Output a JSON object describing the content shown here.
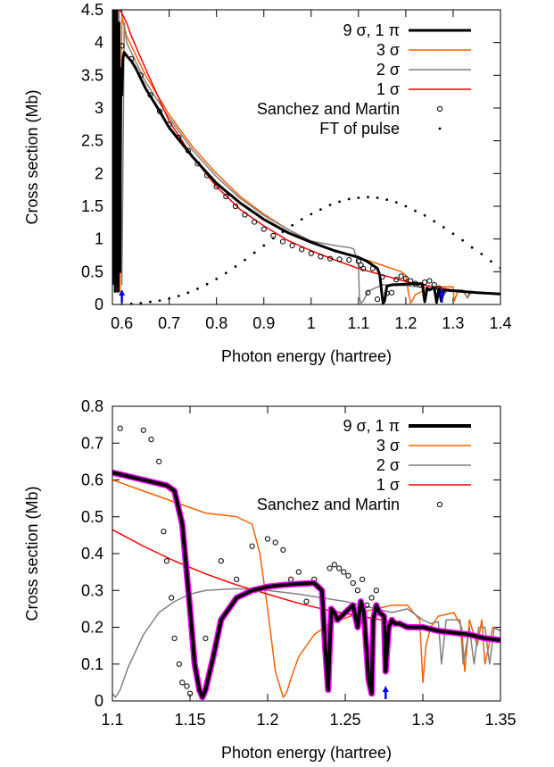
{
  "chart_data": [
    {
      "type": "line",
      "title": "",
      "xlabel": "Photon energy (hartree)",
      "ylabel": "Cross section (Mb)",
      "xlim": [
        0.58,
        1.4
      ],
      "ylim": [
        0,
        4.5
      ],
      "xticks": [
        0.6,
        0.7,
        0.8,
        0.9,
        1,
        1.1,
        1.2,
        1.3,
        1.4
      ],
      "xtick_labels": [
        "0.6",
        "0.7",
        "0.8",
        "0.9",
        "1",
        "1.1",
        "1.2",
        "1.3",
        "1.4"
      ],
      "yticks": [
        0,
        0.5,
        1,
        1.5,
        2,
        2.5,
        3,
        3.5,
        4,
        4.5
      ],
      "ytick_labels": [
        "0",
        "0.5",
        "1",
        "1.5",
        "2",
        "2.5",
        "3",
        "3.5",
        "4",
        "4.5"
      ],
      "legend": "top-right",
      "grid": false,
      "markers": [
        0.6,
        1.276
      ],
      "marker_color": "#0000ff",
      "series": [
        {
          "name": "9 σ, 1 π",
          "style": "line",
          "color": "#000000",
          "width": 3,
          "x": [
            0.58,
            0.583,
            0.586,
            0.589,
            0.592,
            0.594,
            0.596,
            0.598,
            0.6,
            0.602,
            0.605,
            0.61,
            0.62,
            0.63,
            0.65,
            0.68,
            0.7,
            0.75,
            0.8,
            0.85,
            0.9,
            0.95,
            1.0,
            1.05,
            1.08,
            1.1,
            1.12,
            1.13,
            1.14,
            1.145,
            1.15,
            1.152,
            1.155,
            1.16,
            1.17,
            1.2,
            1.22,
            1.235,
            1.24,
            1.245,
            1.25,
            1.26,
            1.265,
            1.27,
            1.275,
            1.28,
            1.3,
            1.35,
            1.4
          ],
          "y": [
            0.3,
            4.5,
            0.2,
            4.5,
            0.2,
            4.3,
            0.5,
            3.6,
            3.2,
            3.75,
            3.85,
            3.8,
            3.72,
            3.6,
            3.3,
            2.95,
            2.7,
            2.25,
            1.85,
            1.55,
            1.3,
            1.1,
            0.95,
            0.82,
            0.76,
            0.72,
            0.65,
            0.6,
            0.55,
            0.45,
            0.12,
            0.02,
            0.05,
            0.28,
            0.3,
            0.31,
            0.32,
            0.31,
            0.04,
            0.25,
            0.22,
            0.26,
            0.03,
            0.24,
            0.05,
            0.22,
            0.21,
            0.18,
            0.16
          ]
        },
        {
          "name": "3 σ",
          "style": "line",
          "color": "#ff6000",
          "width": 1.5,
          "x": [
            0.58,
            0.585,
            0.59,
            0.593,
            0.596,
            0.6,
            0.61,
            0.63,
            0.65,
            0.7,
            0.75,
            0.8,
            0.85,
            0.9,
            0.95,
            1.0,
            1.05,
            1.1,
            1.15,
            1.17,
            1.19,
            1.2,
            1.205,
            1.21,
            1.213,
            1.22,
            1.24,
            1.27,
            1.3,
            1.302,
            1.31,
            1.32,
            1.33,
            1.335,
            1.35,
            1.4
          ],
          "y": [
            0.3,
            4.5,
            0.2,
            4.5,
            0.2,
            4.4,
            4.1,
            3.8,
            3.5,
            2.9,
            2.4,
            2.0,
            1.65,
            1.38,
            1.15,
            0.95,
            0.82,
            0.72,
            0.6,
            0.55,
            0.5,
            0.45,
            0.2,
            0.02,
            0.05,
            0.15,
            0.22,
            0.27,
            0.27,
            0.05,
            0.2,
            0.22,
            0.1,
            0.2,
            0.18,
            0.16
          ]
        },
        {
          "name": "2 σ",
          "style": "line",
          "color": "#808080",
          "width": 1.5,
          "x": [
            0.58,
            0.585,
            0.59,
            0.594,
            0.6,
            0.605,
            0.61,
            0.63,
            0.65,
            0.7,
            0.75,
            0.8,
            0.85,
            0.9,
            0.95,
            1.0,
            1.05,
            1.08,
            1.09,
            1.1,
            1.102,
            1.105,
            1.11,
            1.12,
            1.15,
            1.2,
            1.25,
            1.28,
            1.3,
            1.32,
            1.33,
            1.34,
            1.35,
            1.4
          ],
          "y": [
            0.3,
            4.5,
            0.3,
            4.5,
            0.3,
            4.3,
            4.0,
            3.7,
            3.4,
            2.85,
            2.35,
            1.95,
            1.62,
            1.36,
            1.15,
            0.97,
            0.9,
            0.87,
            0.85,
            0.6,
            0.1,
            0.02,
            0.05,
            0.2,
            0.3,
            0.29,
            0.25,
            0.22,
            0.22,
            0.22,
            0.1,
            0.2,
            0.18,
            0.16
          ]
        },
        {
          "name": "1 σ",
          "style": "line",
          "color": "#ff0000",
          "width": 1.5,
          "x": [
            0.58,
            0.584,
            0.59,
            0.595,
            0.6,
            0.61,
            0.62,
            0.65,
            0.7,
            0.75,
            0.8,
            0.85,
            0.9,
            0.95,
            1.0,
            1.05,
            1.1,
            1.15,
            1.2,
            1.25,
            1.3,
            1.35,
            1.4
          ],
          "y": [
            0.4,
            4.5,
            4.5,
            4.5,
            4.45,
            4.3,
            4.1,
            3.6,
            2.8,
            2.25,
            1.8,
            1.45,
            1.2,
            0.98,
            0.82,
            0.68,
            0.55,
            0.45,
            0.35,
            0.28,
            0.22,
            0.18,
            0.15
          ]
        },
        {
          "name": "Sanchez and Martin",
          "style": "open-circles",
          "color": "#000000",
          "x": [
            0.6,
            0.62,
            0.64,
            0.66,
            0.68,
            0.7,
            0.72,
            0.74,
            0.76,
            0.78,
            0.8,
            0.82,
            0.84,
            0.86,
            0.88,
            0.9,
            0.92,
            0.94,
            0.96,
            0.98,
            1.0,
            1.02,
            1.04,
            1.06,
            1.08,
            1.1,
            1.105,
            1.11,
            1.12,
            1.13,
            1.14,
            1.15,
            1.16,
            1.17,
            1.18,
            1.19,
            1.2,
            1.21,
            1.22,
            1.23,
            1.24,
            1.25,
            1.26,
            1.27,
            1.28
          ],
          "y": [
            3.95,
            3.75,
            3.5,
            3.2,
            2.95,
            2.75,
            2.55,
            2.35,
            2.15,
            1.97,
            1.8,
            1.65,
            1.5,
            1.37,
            1.26,
            1.15,
            1.05,
            0.96,
            0.9,
            0.84,
            0.78,
            0.73,
            0.7,
            0.69,
            0.68,
            0.66,
            0.6,
            0.55,
            0.18,
            0.55,
            0.08,
            0.42,
            0.17,
            0.18,
            0.38,
            0.43,
            0.4,
            0.36,
            0.32,
            0.3,
            0.34,
            0.36,
            0.3,
            0.25,
            0.2
          ]
        },
        {
          "name": "FT of pulse",
          "style": "dots",
          "color": "#000000",
          "x": [
            0.6,
            0.62,
            0.64,
            0.66,
            0.68,
            0.7,
            0.72,
            0.74,
            0.76,
            0.78,
            0.8,
            0.82,
            0.84,
            0.86,
            0.88,
            0.9,
            0.92,
            0.94,
            0.96,
            0.98,
            1.0,
            1.02,
            1.04,
            1.06,
            1.08,
            1.1,
            1.12,
            1.14,
            1.16,
            1.18,
            1.2,
            1.22,
            1.24,
            1.26,
            1.28,
            1.3,
            1.32,
            1.34,
            1.36,
            1.38,
            1.4
          ],
          "y": [
            0.0,
            0.01,
            0.02,
            0.04,
            0.06,
            0.09,
            0.13,
            0.18,
            0.24,
            0.31,
            0.39,
            0.48,
            0.58,
            0.68,
            0.79,
            0.9,
            1.01,
            1.11,
            1.21,
            1.3,
            1.38,
            1.45,
            1.52,
            1.57,
            1.61,
            1.63,
            1.64,
            1.63,
            1.6,
            1.56,
            1.5,
            1.43,
            1.36,
            1.27,
            1.18,
            1.08,
            0.98,
            0.87,
            0.77,
            0.66,
            0.56
          ]
        }
      ]
    },
    {
      "type": "line",
      "title": "",
      "xlabel": "Photon energy (hartree)",
      "ylabel": "Cross section (Mb)",
      "xlim": [
        1.1,
        1.35
      ],
      "ylim": [
        0,
        0.8
      ],
      "xticks": [
        1.1,
        1.15,
        1.2,
        1.25,
        1.3,
        1.35
      ],
      "xtick_labels": [
        "1.1",
        "1.15",
        "1.2",
        "1.25",
        "1.3",
        "1.35"
      ],
      "yticks": [
        0,
        0.1,
        0.2,
        0.3,
        0.4,
        0.5,
        0.6,
        0.7,
        0.8
      ],
      "ytick_labels": [
        "0",
        "0.1",
        "0.2",
        "0.3",
        "0.4",
        "0.5",
        "0.6",
        "0.7",
        "0.8"
      ],
      "legend": "top-right",
      "grid": false,
      "markers": [
        1.276
      ],
      "marker_color": "#0000ff",
      "series": [
        {
          "name": "9 σ, 1 π",
          "style": "line",
          "color": "#000000",
          "width": 4,
          "halo": "#ff00ff",
          "x": [
            1.1,
            1.11,
            1.12,
            1.13,
            1.135,
            1.14,
            1.145,
            1.15,
            1.153,
            1.156,
            1.158,
            1.16,
            1.165,
            1.17,
            1.18,
            1.19,
            1.2,
            1.21,
            1.22,
            1.23,
            1.235,
            1.237,
            1.239,
            1.24,
            1.241,
            1.243,
            1.245,
            1.25,
            1.255,
            1.258,
            1.26,
            1.262,
            1.265,
            1.267,
            1.268,
            1.27,
            1.272,
            1.275,
            1.276,
            1.278,
            1.28,
            1.282,
            1.285,
            1.29,
            1.3,
            1.31,
            1.32,
            1.33,
            1.34,
            1.35
          ],
          "y": [
            0.62,
            0.61,
            0.6,
            0.59,
            0.585,
            0.57,
            0.48,
            0.25,
            0.1,
            0.03,
            0.01,
            0.03,
            0.12,
            0.22,
            0.28,
            0.3,
            0.31,
            0.315,
            0.318,
            0.32,
            0.3,
            0.15,
            0.03,
            0.15,
            0.25,
            0.24,
            0.22,
            0.24,
            0.26,
            0.2,
            0.27,
            0.24,
            0.06,
            0.02,
            0.22,
            0.26,
            0.24,
            0.23,
            0.08,
            0.2,
            0.22,
            0.21,
            0.21,
            0.2,
            0.2,
            0.19,
            0.185,
            0.18,
            0.17,
            0.165
          ]
        },
        {
          "name": "3 σ",
          "style": "line",
          "color": "#ff6000",
          "width": 1.5,
          "x": [
            1.1,
            1.12,
            1.14,
            1.16,
            1.18,
            1.19,
            1.195,
            1.2,
            1.205,
            1.21,
            1.212,
            1.215,
            1.22,
            1.23,
            1.24,
            1.26,
            1.28,
            1.29,
            1.298,
            1.3,
            1.302,
            1.305,
            1.31,
            1.32,
            1.325,
            1.327,
            1.33,
            1.335,
            1.338,
            1.34,
            1.345,
            1.35
          ],
          "y": [
            0.6,
            0.57,
            0.54,
            0.51,
            0.5,
            0.48,
            0.4,
            0.25,
            0.08,
            0.01,
            0.02,
            0.06,
            0.12,
            0.18,
            0.21,
            0.24,
            0.26,
            0.26,
            0.22,
            0.05,
            0.15,
            0.2,
            0.23,
            0.24,
            0.2,
            0.08,
            0.22,
            0.15,
            0.22,
            0.1,
            0.2,
            0.19
          ]
        },
        {
          "name": "2 σ",
          "style": "line",
          "color": "#808080",
          "width": 1.5,
          "x": [
            1.1,
            1.102,
            1.105,
            1.11,
            1.12,
            1.13,
            1.14,
            1.15,
            1.16,
            1.18,
            1.2,
            1.22,
            1.25,
            1.28,
            1.29,
            1.3,
            1.305,
            1.31,
            1.312,
            1.315,
            1.32,
            1.324,
            1.326,
            1.33,
            1.333,
            1.336,
            1.34,
            1.343,
            1.346,
            1.35
          ],
          "y": [
            0.02,
            0.01,
            0.03,
            0.09,
            0.18,
            0.24,
            0.27,
            0.29,
            0.3,
            0.305,
            0.3,
            0.29,
            0.27,
            0.24,
            0.25,
            0.22,
            0.21,
            0.215,
            0.1,
            0.22,
            0.22,
            0.22,
            0.1,
            0.2,
            0.1,
            0.2,
            0.2,
            0.1,
            0.2,
            0.19
          ]
        },
        {
          "name": "1 σ",
          "style": "line",
          "color": "#ff0000",
          "width": 1.5,
          "x": [
            1.1,
            1.12,
            1.14,
            1.16,
            1.18,
            1.2,
            1.22,
            1.24,
            1.26,
            1.28,
            1.3,
            1.32,
            1.34,
            1.35
          ],
          "y": [
            0.465,
            0.42,
            0.38,
            0.345,
            0.315,
            0.29,
            0.265,
            0.245,
            0.23,
            0.215,
            0.2,
            0.185,
            0.172,
            0.165
          ]
        },
        {
          "name": "Sanchez and Martin",
          "style": "open-circles",
          "color": "#000000",
          "x": [
            1.105,
            1.12,
            1.125,
            1.13,
            1.133,
            1.135,
            1.138,
            1.14,
            1.143,
            1.145,
            1.148,
            1.15,
            1.16,
            1.17,
            1.18,
            1.19,
            1.2,
            1.205,
            1.21,
            1.215,
            1.22,
            1.225,
            1.23,
            1.235,
            1.24,
            1.243,
            1.246,
            1.249,
            1.252,
            1.255,
            1.258,
            1.261,
            1.264,
            1.267,
            1.27
          ],
          "y": [
            0.74,
            0.735,
            0.71,
            0.65,
            0.46,
            0.38,
            0.28,
            0.17,
            0.1,
            0.05,
            0.04,
            0.02,
            0.17,
            0.38,
            0.33,
            0.42,
            0.44,
            0.43,
            0.41,
            0.33,
            0.35,
            0.27,
            0.33,
            0.28,
            0.36,
            0.37,
            0.36,
            0.35,
            0.34,
            0.32,
            0.3,
            0.33,
            0.26,
            0.28,
            0.3
          ]
        }
      ]
    }
  ]
}
